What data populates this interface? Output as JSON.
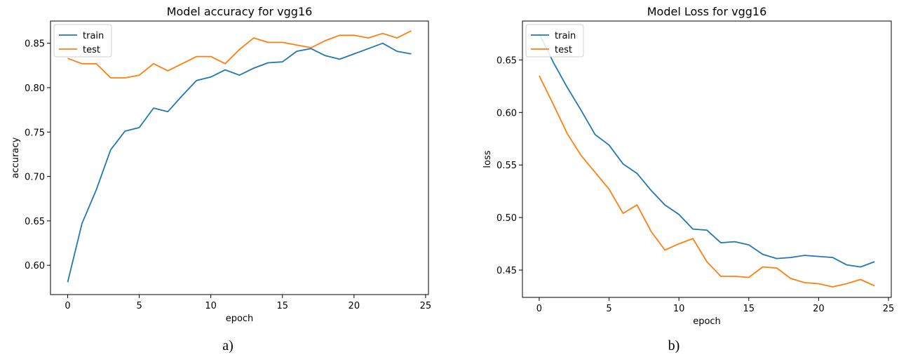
{
  "chart_data": [
    {
      "type": "line",
      "title": "Model accuracy for vgg16",
      "xlabel": "epoch",
      "ylabel": "accuracy",
      "caption": "a)",
      "xlim": [
        -1.2,
        25.2
      ],
      "ylim": [
        0.567,
        0.875
      ],
      "x_ticks": [
        0,
        5,
        10,
        15,
        20,
        25
      ],
      "y_ticks": [
        0.6,
        0.65,
        0.7,
        0.75,
        0.8,
        0.85
      ],
      "y_tick_labels": [
        "0.60",
        "0.65",
        "0.70",
        "0.75",
        "0.80",
        "0.85"
      ],
      "legend_position": "top-left",
      "x": [
        0,
        1,
        2,
        3,
        4,
        5,
        6,
        7,
        8,
        9,
        10,
        11,
        12,
        13,
        14,
        15,
        16,
        17,
        18,
        19,
        20,
        21,
        22,
        23,
        24
      ],
      "series": [
        {
          "name": "train",
          "color": "#1f77b4",
          "values": [
            0.581,
            0.647,
            0.685,
            0.73,
            0.751,
            0.755,
            0.777,
            0.773,
            0.791,
            0.808,
            0.812,
            0.82,
            0.814,
            0.822,
            0.828,
            0.829,
            0.841,
            0.844,
            0.836,
            0.832,
            0.838,
            0.844,
            0.85,
            0.841,
            0.838
          ]
        },
        {
          "name": "test",
          "color": "#ff7f0e",
          "values": [
            0.833,
            0.827,
            0.827,
            0.811,
            0.811,
            0.814,
            0.827,
            0.819,
            0.827,
            0.835,
            0.835,
            0.827,
            0.843,
            0.856,
            0.851,
            0.851,
            0.848,
            0.845,
            0.853,
            0.859,
            0.859,
            0.856,
            0.861,
            0.856,
            0.864
          ]
        }
      ]
    },
    {
      "type": "line",
      "title": "Model Loss for vgg16",
      "xlabel": "epoch",
      "ylabel": "loss",
      "caption": "b)",
      "xlim": [
        -1.2,
        25.2
      ],
      "ylim": [
        0.424,
        0.687
      ],
      "x_ticks": [
        0,
        5,
        10,
        15,
        20,
        25
      ],
      "y_ticks": [
        0.45,
        0.5,
        0.55,
        0.6,
        0.65
      ],
      "y_tick_labels": [
        "0.45",
        "0.50",
        "0.55",
        "0.60",
        "0.65"
      ],
      "legend_position": "top-left",
      "x": [
        0,
        1,
        2,
        3,
        4,
        5,
        6,
        7,
        8,
        9,
        10,
        11,
        12,
        13,
        14,
        15,
        16,
        17,
        18,
        19,
        20,
        21,
        22,
        23,
        24
      ],
      "series": [
        {
          "name": "train",
          "color": "#1f77b4",
          "values": [
            0.675,
            0.648,
            0.624,
            0.602,
            0.579,
            0.569,
            0.551,
            0.542,
            0.526,
            0.512,
            0.503,
            0.489,
            0.488,
            0.476,
            0.477,
            0.474,
            0.465,
            0.461,
            0.462,
            0.464,
            0.463,
            0.462,
            0.455,
            0.453,
            0.458
          ]
        },
        {
          "name": "test",
          "color": "#ff7f0e",
          "values": [
            0.635,
            0.608,
            0.58,
            0.559,
            0.543,
            0.527,
            0.504,
            0.512,
            0.487,
            0.469,
            0.475,
            0.48,
            0.458,
            0.444,
            0.444,
            0.443,
            0.453,
            0.452,
            0.442,
            0.438,
            0.437,
            0.434,
            0.437,
            0.441,
            0.435
          ]
        }
      ]
    }
  ]
}
